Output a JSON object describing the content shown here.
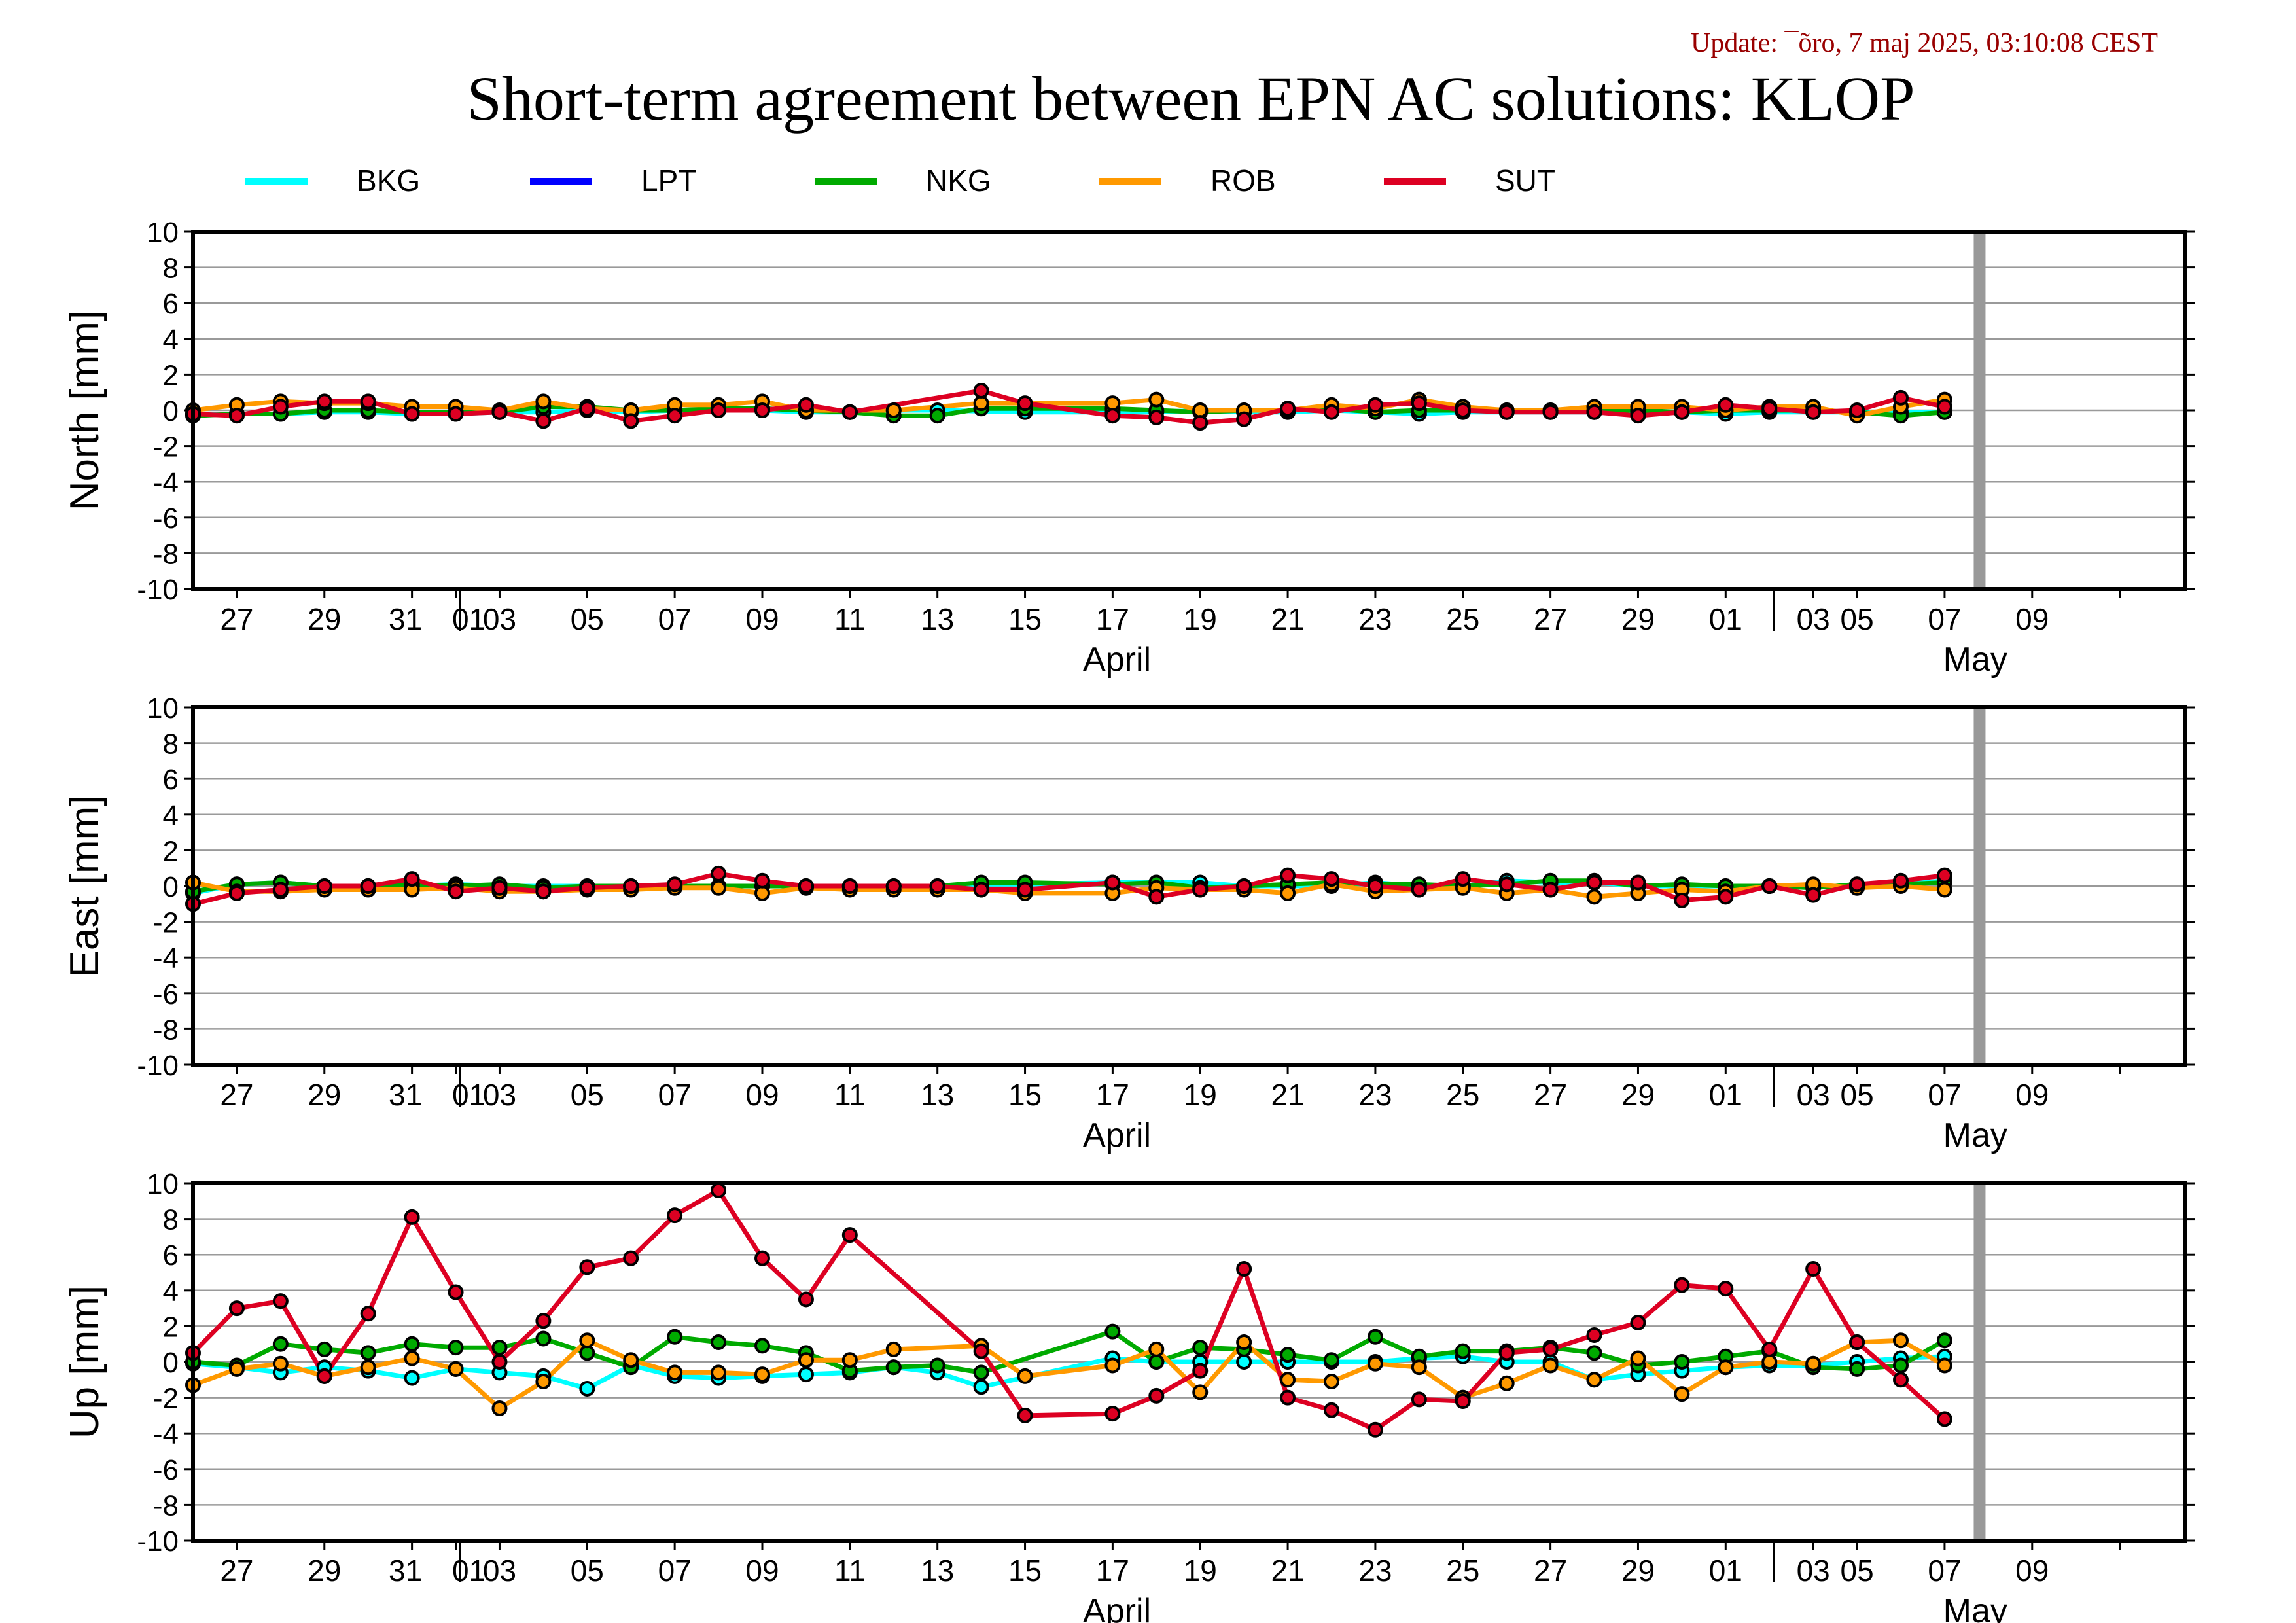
{
  "update_text": "Update: ¯õro, 7 maj 2025, 03:10:08 CEST",
  "title": "Short-term agreement between EPN AC solutions: KLOP",
  "colors": {
    "BKG": "#00ffff",
    "LPT": "#0000ff",
    "NKG": "#00aa00",
    "ROB": "#ff9900",
    "SUT": "#dd0022",
    "update_text": "#990000",
    "future_marker": "#999999"
  },
  "legend": [
    {
      "key": "BKG",
      "label": "BKG"
    },
    {
      "key": "LPT",
      "label": "LPT"
    },
    {
      "key": "NKG",
      "label": "NKG"
    },
    {
      "key": "ROB",
      "label": "ROB"
    },
    {
      "key": "SUT",
      "label": "SUT"
    }
  ],
  "x_tick_labels": [
    "27",
    "29",
    "31",
    "01",
    "03",
    "05",
    "07",
    "09",
    "11",
    "13",
    "15",
    "17",
    "19",
    "21",
    "23",
    "25",
    "27",
    "29",
    "01",
    "03",
    "05",
    "07",
    "09"
  ],
  "month_labels": [
    "April",
    "May"
  ],
  "chart_data": [
    {
      "type": "line",
      "component": "north",
      "ylabel": "North [mm]",
      "ylim": [
        -10,
        10
      ],
      "yticks": [
        10,
        8,
        6,
        4,
        2,
        0,
        -2,
        -4,
        -6,
        -8,
        -10
      ],
      "x_unit": "day (0 = 26 Mar 2025)",
      "xlim": [
        0,
        45.5
      ],
      "future_marker_x": 40.8,
      "grid": true,
      "legend_position": "top",
      "series": [
        {
          "name": "BKG",
          "x": [
            0,
            1,
            2,
            3,
            4,
            5,
            6,
            7,
            8,
            9,
            10,
            11,
            12,
            13,
            14,
            15,
            16,
            17,
            19,
            21,
            22,
            23,
            24,
            25,
            26,
            27,
            28,
            29,
            30,
            31,
            32,
            33,
            34,
            35,
            36,
            37,
            38,
            39,
            40
          ],
          "y": [
            -0.2,
            -0.2,
            -0.2,
            -0.1,
            -0.1,
            -0.2,
            -0.2,
            -0.1,
            -0.1,
            0.0,
            -0.1,
            0.0,
            0.0,
            0.0,
            -0.1,
            -0.1,
            0.0,
            0.0,
            -0.1,
            -0.1,
            -0.1,
            0.0,
            -0.1,
            -0.1,
            0.0,
            -0.1,
            -0.2,
            -0.1,
            -0.1,
            -0.1,
            -0.1,
            -0.1,
            -0.1,
            -0.2,
            -0.1,
            -0.1,
            -0.1,
            -0.1,
            -0.1
          ]
        },
        {
          "name": "NKG",
          "x": [
            0,
            1,
            2,
            3,
            4,
            5,
            6,
            7,
            8,
            9,
            10,
            11,
            12,
            13,
            14,
            15,
            16,
            17,
            18,
            19,
            21,
            22,
            23,
            24,
            25,
            26,
            27,
            28,
            29,
            30,
            31,
            32,
            33,
            34,
            35,
            36,
            37,
            38,
            39,
            40
          ],
          "y": [
            -0.3,
            -0.2,
            -0.2,
            0.0,
            0.0,
            -0.1,
            -0.1,
            -0.1,
            0.2,
            0.2,
            0.0,
            0.0,
            0.1,
            0.1,
            0.0,
            -0.1,
            -0.3,
            -0.3,
            0.1,
            0.1,
            0.1,
            0.0,
            -0.1,
            0.0,
            0.0,
            0.1,
            -0.1,
            0.0,
            0.0,
            0.0,
            0.0,
            0.0,
            0.0,
            -0.1,
            0.0,
            0.0,
            0.0,
            -0.1,
            -0.3,
            -0.1
          ]
        },
        {
          "name": "ROB",
          "x": [
            0,
            1,
            2,
            3,
            4,
            5,
            6,
            7,
            8,
            9,
            10,
            11,
            12,
            13,
            14,
            16,
            18,
            21,
            22,
            23,
            24,
            25,
            26,
            27,
            28,
            29,
            30,
            31,
            32,
            33,
            34,
            35,
            36,
            37,
            38,
            39,
            40
          ],
          "y": [
            0.0,
            0.3,
            0.5,
            0.4,
            0.4,
            0.2,
            0.2,
            0.0,
            0.5,
            0.1,
            0.0,
            0.3,
            0.3,
            0.5,
            0.0,
            0.0,
            0.4,
            0.4,
            0.6,
            0.0,
            0.0,
            0.0,
            0.3,
            0.1,
            0.6,
            0.2,
            0.0,
            0.0,
            0.2,
            0.2,
            0.2,
            0.0,
            0.2,
            0.2,
            -0.3,
            0.2,
            0.6
          ]
        },
        {
          "name": "SUT",
          "x": [
            0,
            1,
            2,
            3,
            4,
            5,
            6,
            7,
            8,
            9,
            10,
            11,
            12,
            13,
            14,
            15,
            18,
            19,
            21,
            22,
            23,
            24,
            25,
            26,
            27,
            28,
            29,
            30,
            31,
            32,
            33,
            34,
            35,
            36,
            37,
            38,
            39,
            40
          ],
          "y": [
            -0.2,
            -0.3,
            0.2,
            0.5,
            0.5,
            -0.2,
            -0.2,
            -0.1,
            -0.6,
            0.1,
            -0.6,
            -0.3,
            0.0,
            0.0,
            0.3,
            -0.1,
            1.1,
            0.4,
            -0.3,
            -0.4,
            -0.7,
            -0.5,
            0.1,
            -0.1,
            0.3,
            0.4,
            0.0,
            -0.1,
            -0.1,
            -0.1,
            -0.3,
            -0.1,
            0.3,
            0.1,
            -0.1,
            0.0,
            0.7,
            0.2
          ]
        }
      ]
    },
    {
      "type": "line",
      "component": "east",
      "ylabel": "East [mm]",
      "ylim": [
        -10,
        10
      ],
      "yticks": [
        10,
        8,
        6,
        4,
        2,
        0,
        -2,
        -4,
        -6,
        -8,
        -10
      ],
      "x_unit": "day (0 = 26 Mar 2025)",
      "xlim": [
        0,
        45.5
      ],
      "future_marker_x": 40.8,
      "grid": true,
      "legend_position": "top",
      "series": [
        {
          "name": "BKG",
          "x": [
            0,
            1,
            2,
            3,
            4,
            5,
            6,
            7,
            8,
            9,
            10,
            11,
            12,
            13,
            14,
            15,
            16,
            17,
            18,
            19,
            21,
            22,
            23,
            24,
            25,
            26,
            27,
            28,
            29,
            30,
            31,
            32,
            33,
            34,
            35,
            36,
            37,
            38,
            39,
            40
          ],
          "y": [
            -0.4,
            0.1,
            0.2,
            0.0,
            0.0,
            0.0,
            0.1,
            0.0,
            0.0,
            0.0,
            0.0,
            0.0,
            0.0,
            0.0,
            0.0,
            0.0,
            0.0,
            0.0,
            0.1,
            0.1,
            0.2,
            0.2,
            0.2,
            0.0,
            0.0,
            0.0,
            0.2,
            0.0,
            0.0,
            0.3,
            0.2,
            0.2,
            0.0,
            0.0,
            0.0,
            0.0,
            0.0,
            0.0,
            0.1,
            0.3
          ]
        },
        {
          "name": "NKG",
          "x": [
            0,
            1,
            2,
            3,
            4,
            5,
            6,
            7,
            8,
            9,
            10,
            11,
            12,
            13,
            14,
            15,
            16,
            17,
            18,
            19,
            21,
            22,
            23,
            24,
            25,
            26,
            27,
            28,
            29,
            30,
            31,
            32,
            33,
            34,
            35,
            36,
            37,
            38,
            39,
            40
          ],
          "y": [
            -0.3,
            0.1,
            0.2,
            0.0,
            0.0,
            0.1,
            0.0,
            0.1,
            -0.1,
            0.0,
            0.0,
            0.0,
            0.0,
            0.0,
            0.0,
            0.0,
            0.0,
            0.0,
            0.2,
            0.2,
            0.1,
            0.2,
            -0.1,
            0.0,
            0.1,
            0.2,
            0.1,
            0.1,
            0.0,
            0.1,
            0.3,
            0.3,
            0.0,
            0.1,
            0.0,
            0.0,
            -0.1,
            0.1,
            0.1,
            0.2
          ]
        },
        {
          "name": "ROB",
          "x": [
            0,
            1,
            2,
            3,
            4,
            5,
            6,
            7,
            8,
            9,
            10,
            11,
            12,
            13,
            14,
            15,
            16,
            17,
            18,
            19,
            21,
            22,
            23,
            24,
            25,
            26,
            27,
            28,
            29,
            30,
            31,
            32,
            33,
            34,
            35,
            36,
            37,
            38,
            39,
            40
          ],
          "y": [
            0.2,
            -0.3,
            -0.3,
            -0.2,
            -0.2,
            -0.2,
            -0.1,
            -0.3,
            -0.3,
            -0.2,
            -0.2,
            -0.1,
            -0.1,
            -0.4,
            -0.1,
            -0.2,
            -0.2,
            -0.2,
            -0.2,
            -0.4,
            -0.4,
            -0.1,
            -0.2,
            -0.2,
            -0.4,
            0.1,
            -0.3,
            -0.2,
            -0.1,
            -0.4,
            -0.2,
            -0.6,
            -0.4,
            -0.2,
            -0.3,
            0.0,
            0.1,
            -0.1,
            0.0,
            -0.2
          ]
        },
        {
          "name": "SUT",
          "x": [
            0,
            1,
            2,
            3,
            4,
            5,
            6,
            7,
            8,
            9,
            10,
            11,
            12,
            13,
            14,
            15,
            16,
            17,
            18,
            19,
            21,
            22,
            23,
            24,
            25,
            26,
            27,
            28,
            29,
            30,
            31,
            32,
            33,
            34,
            35,
            36,
            37,
            38,
            39,
            40
          ],
          "y": [
            -1.0,
            -0.4,
            -0.2,
            0.0,
            0.0,
            0.4,
            -0.3,
            -0.1,
            -0.3,
            -0.1,
            0.0,
            0.1,
            0.7,
            0.3,
            0.0,
            0.0,
            0.0,
            0.0,
            -0.2,
            -0.2,
            0.2,
            -0.6,
            -0.2,
            0.0,
            0.6,
            0.4,
            0.0,
            -0.2,
            0.4,
            0.1,
            -0.2,
            0.2,
            0.2,
            -0.8,
            -0.6,
            0.0,
            -0.5,
            0.1,
            0.3,
            0.6
          ]
        }
      ]
    },
    {
      "type": "line",
      "component": "up",
      "ylabel": "Up [mm]",
      "ylim": [
        -10,
        10
      ],
      "yticks": [
        10,
        8,
        6,
        4,
        2,
        0,
        -2,
        -4,
        -6,
        -8,
        -10
      ],
      "x_unit": "day (0 = 26 Mar 2025)",
      "xlim": [
        0,
        45.5
      ],
      "future_marker_x": 40.8,
      "grid": true,
      "legend_position": "top",
      "series": [
        {
          "name": "BKG",
          "x": [
            0,
            1,
            2,
            3,
            4,
            5,
            6,
            7,
            8,
            9,
            10,
            11,
            12,
            13,
            14,
            15,
            16,
            17,
            18,
            21,
            22,
            23,
            24,
            25,
            26,
            27,
            28,
            29,
            30,
            31,
            32,
            33,
            34,
            35,
            36,
            37,
            38,
            39,
            40
          ],
          "y": [
            -0.1,
            -0.3,
            -0.6,
            -0.3,
            -0.5,
            -0.9,
            -0.4,
            -0.6,
            -0.8,
            -1.5,
            -0.2,
            -0.8,
            -0.9,
            -0.8,
            -0.7,
            -0.6,
            -0.3,
            -0.6,
            -1.4,
            0.2,
            0.0,
            0.0,
            0.0,
            0.0,
            0.0,
            0.0,
            0.2,
            0.3,
            0.0,
            0.0,
            -1.0,
            -0.7,
            -0.5,
            -0.3,
            -0.2,
            -0.2,
            0.0,
            0.2,
            0.3
          ]
        },
        {
          "name": "NKG",
          "x": [
            0,
            1,
            2,
            3,
            4,
            5,
            6,
            7,
            8,
            9,
            10,
            11,
            12,
            13,
            14,
            15,
            16,
            17,
            18,
            21,
            22,
            23,
            24,
            25,
            26,
            27,
            28,
            29,
            30,
            31,
            32,
            33,
            34,
            35,
            36,
            37,
            38,
            39,
            40
          ],
          "y": [
            0.0,
            -0.2,
            1.0,
            0.7,
            0.5,
            1.0,
            0.8,
            0.8,
            1.3,
            0.5,
            -0.3,
            1.4,
            1.1,
            0.9,
            0.5,
            -0.5,
            -0.3,
            -0.2,
            -0.6,
            1.7,
            0.0,
            0.8,
            0.7,
            0.4,
            0.1,
            1.4,
            0.3,
            0.6,
            0.6,
            0.8,
            0.5,
            -0.2,
            0.0,
            0.3,
            0.6,
            -0.3,
            -0.4,
            -0.2,
            1.2
          ]
        },
        {
          "name": "ROB",
          "x": [
            0,
            1,
            2,
            3,
            4,
            5,
            6,
            7,
            8,
            9,
            10,
            11,
            12,
            13,
            14,
            15,
            16,
            18,
            19,
            21,
            22,
            23,
            24,
            25,
            26,
            27,
            28,
            29,
            30,
            31,
            32,
            33,
            34,
            35,
            36,
            37,
            38,
            39,
            40
          ],
          "y": [
            -1.3,
            -0.4,
            -0.1,
            -0.8,
            -0.3,
            0.2,
            -0.4,
            -2.6,
            -1.1,
            1.2,
            0.1,
            -0.6,
            -0.6,
            -0.7,
            0.1,
            0.1,
            0.7,
            0.9,
            -0.8,
            -0.2,
            0.7,
            -1.7,
            1.1,
            -1.0,
            -1.1,
            -0.1,
            -0.3,
            -2.0,
            -1.2,
            -0.2,
            -1.0,
            0.2,
            -1.8,
            -0.3,
            0.0,
            -0.1,
            1.1,
            1.2,
            -0.2
          ]
        },
        {
          "name": "SUT",
          "x": [
            0,
            1,
            2,
            3,
            4,
            5,
            6,
            7,
            8,
            9,
            10,
            11,
            12,
            13,
            14,
            15,
            18,
            19,
            21,
            22,
            23,
            24,
            25,
            26,
            27,
            28,
            29,
            30,
            31,
            32,
            33,
            34,
            35,
            36,
            37,
            38,
            39,
            40
          ],
          "y": [
            0.5,
            3.0,
            3.4,
            -0.8,
            2.7,
            8.1,
            3.9,
            0.0,
            2.3,
            5.3,
            5.8,
            8.2,
            9.6,
            5.8,
            3.5,
            7.1,
            0.6,
            -3.0,
            -2.9,
            -1.9,
            -0.5,
            5.2,
            -2.0,
            -2.7,
            -3.8,
            -2.1,
            -2.2,
            0.5,
            0.7,
            1.5,
            2.2,
            4.3,
            4.1,
            0.7,
            5.2,
            1.1,
            -1.0,
            -3.2
          ]
        }
      ]
    }
  ]
}
